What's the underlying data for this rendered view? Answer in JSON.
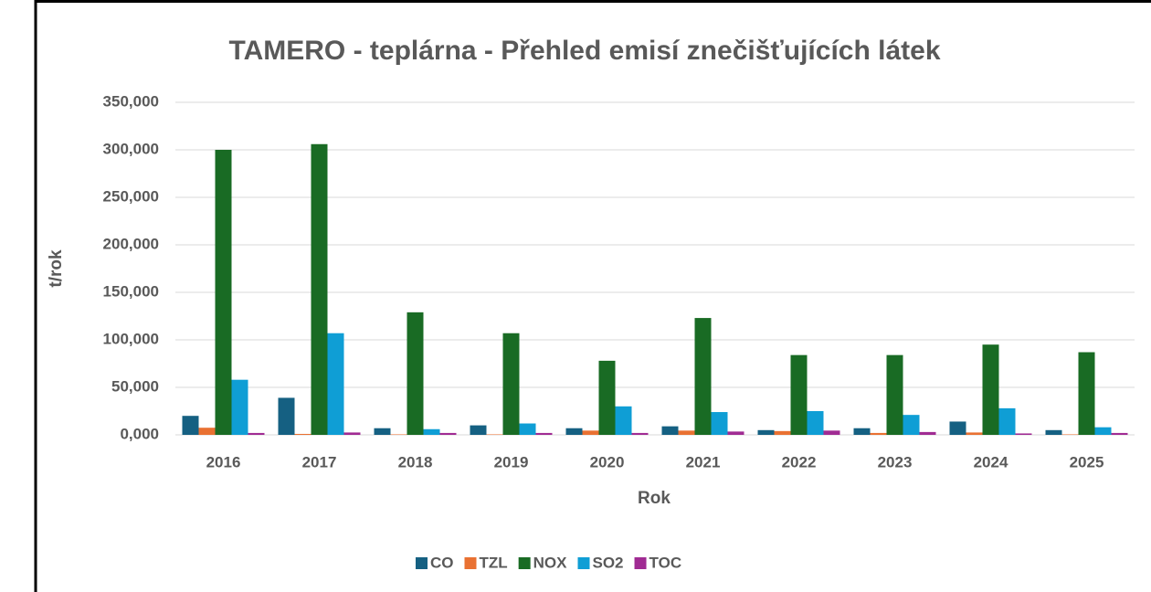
{
  "chart_data": {
    "type": "bar",
    "title": "TAMERO - teplárna - Přehled emisí znečišťujících látek",
    "xlabel": "Rok",
    "ylabel": "t/rok",
    "categories": [
      "2016",
      "2017",
      "2018",
      "2019",
      "2020",
      "2021",
      "2022",
      "2023",
      "2024",
      "2025"
    ],
    "series": [
      {
        "name": "CO",
        "color": "#156082",
        "values": [
          20,
          39,
          7,
          10,
          7,
          9,
          5,
          7,
          14,
          5
        ]
      },
      {
        "name": "TZL",
        "color": "#e97132",
        "values": [
          7.5,
          1,
          0.5,
          0.5,
          4.5,
          4.5,
          4,
          2,
          2.5,
          0.5
        ]
      },
      {
        "name": "NOX",
        "color": "#196b24",
        "values": [
          300,
          306,
          129,
          107,
          78,
          123,
          84,
          84,
          95,
          87
        ]
      },
      {
        "name": "SO2",
        "color": "#0f9ed5",
        "values": [
          58,
          107,
          6,
          12,
          30,
          24,
          25,
          21,
          28,
          8
        ]
      },
      {
        "name": "TOC",
        "color": "#a02b93",
        "values": [
          2,
          2.5,
          2,
          2,
          2,
          3.5,
          4.5,
          3,
          1.5,
          2
        ]
      }
    ],
    "ylim": [
      0,
      350
    ],
    "yticks": [
      {
        "value": 0,
        "label": "0,000"
      },
      {
        "value": 50,
        "label": "50,000"
      },
      {
        "value": 100,
        "label": "100,000"
      },
      {
        "value": 150,
        "label": "150,000"
      },
      {
        "value": 200,
        "label": "200,000"
      },
      {
        "value": 250,
        "label": "250,000"
      },
      {
        "value": 300,
        "label": "300,000"
      },
      {
        "value": 350,
        "label": "350,000"
      }
    ],
    "grid": true,
    "legend": "bottom"
  }
}
